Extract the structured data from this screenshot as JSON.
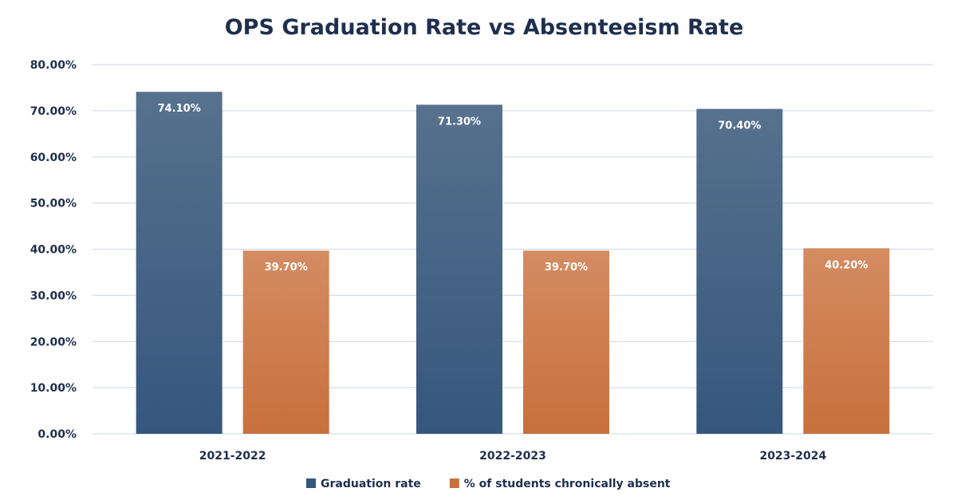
{
  "chart_data": {
    "type": "bar",
    "title": "OPS Graduation Rate vs Absenteeism Rate",
    "xlabel": "",
    "ylabel": "",
    "ylim": [
      0,
      80
    ],
    "grid": true,
    "legend_position": "bottom",
    "categories": [
      "2021-2022",
      "2022-2023",
      "2023-2024"
    ],
    "y_ticks": [
      {
        "value": 0,
        "label": "0.00%"
      },
      {
        "value": 10,
        "label": "10.00%"
      },
      {
        "value": 20,
        "label": "20.00%"
      },
      {
        "value": 30,
        "label": "30.00%"
      },
      {
        "value": 40,
        "label": "40.00%"
      },
      {
        "value": 50,
        "label": "50.00%"
      },
      {
        "value": 60,
        "label": "60.00%"
      },
      {
        "value": 70,
        "label": "70.00%"
      },
      {
        "value": 80,
        "label": "80.00%"
      }
    ],
    "series": [
      {
        "key": "graduation",
        "name": "Graduation rate",
        "color": "#35577d",
        "color_top": "#57718e",
        "values": [
          74.1,
          71.3,
          70.4
        ],
        "labels": [
          "74.10%",
          "71.30%",
          "70.40%"
        ]
      },
      {
        "key": "absent",
        "name": "% of students chronically absent",
        "color": "#c8703c",
        "color_top": "#d48c62",
        "values": [
          39.7,
          39.7,
          40.2
        ],
        "labels": [
          "39.70%",
          "39.70%",
          "40.20%"
        ]
      }
    ]
  }
}
